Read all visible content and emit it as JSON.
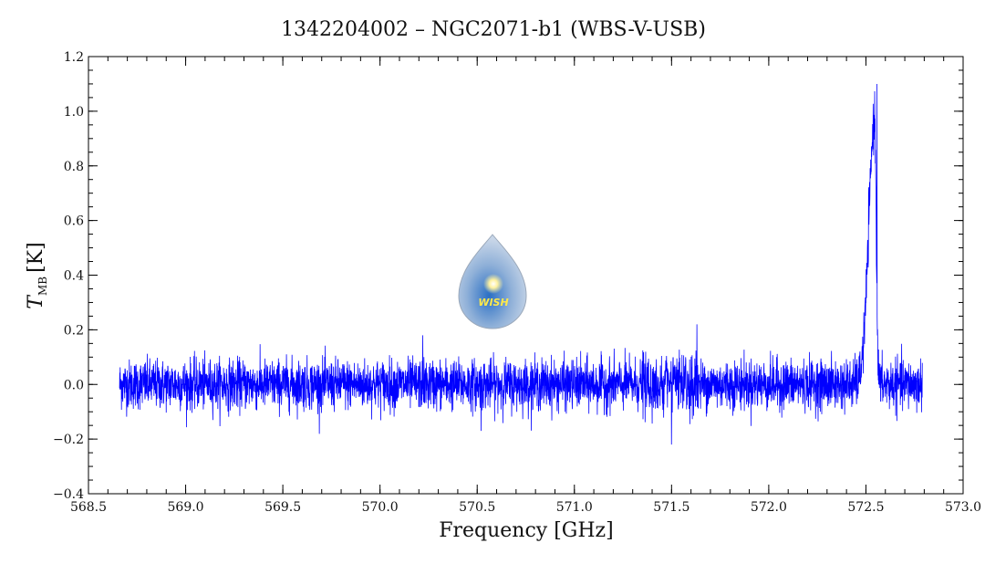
{
  "chart_data": {
    "type": "line",
    "title": "1342204002 – NGC2071-b1 (WBS-V-USB)",
    "xlabel": "Frequency [GHz]",
    "ylabel": {
      "symbol": "T",
      "subscript": "MB",
      "unit": "[K]"
    },
    "xlim": [
      568.5,
      573.0
    ],
    "ylim": [
      -0.4,
      1.2
    ],
    "x_ticks": [
      568.5,
      569.0,
      569.5,
      570.0,
      570.5,
      571.0,
      571.5,
      572.0,
      572.5,
      573.0
    ],
    "x_tick_labels": [
      "568.5",
      "569.0",
      "569.5",
      "570.0",
      "570.5",
      "571.0",
      "571.5",
      "572.0",
      "572.5",
      "573.0"
    ],
    "y_ticks": [
      -0.4,
      -0.2,
      0.0,
      0.2,
      0.4,
      0.6,
      0.8,
      1.0,
      1.2
    ],
    "y_tick_labels": [
      "−0.4",
      "−0.2",
      "0.0",
      "0.2",
      "0.4",
      "0.6",
      "0.8",
      "1.0",
      "1.2"
    ],
    "grid": false,
    "color": "#0000ff",
    "series": [
      {
        "x_range": [
          568.66,
          572.79
        ],
        "noise_rms_K": 0.045,
        "features": [
          {
            "type": "emission-line",
            "center_GHz": 572.545,
            "peak_K": 0.97,
            "max_spike_K": 1.1
          },
          {
            "type": "spike",
            "x_GHz": 570.22,
            "y_K": 0.18
          },
          {
            "type": "spike",
            "x_GHz": 571.63,
            "y_K": 0.22
          },
          {
            "type": "spike",
            "x_GHz": 571.5,
            "y_K": -0.22
          },
          {
            "type": "spike",
            "x_GHz": 570.52,
            "y_K": -0.17
          }
        ]
      }
    ]
  },
  "logo": {
    "text": "WISH",
    "name": "wish-logo"
  }
}
